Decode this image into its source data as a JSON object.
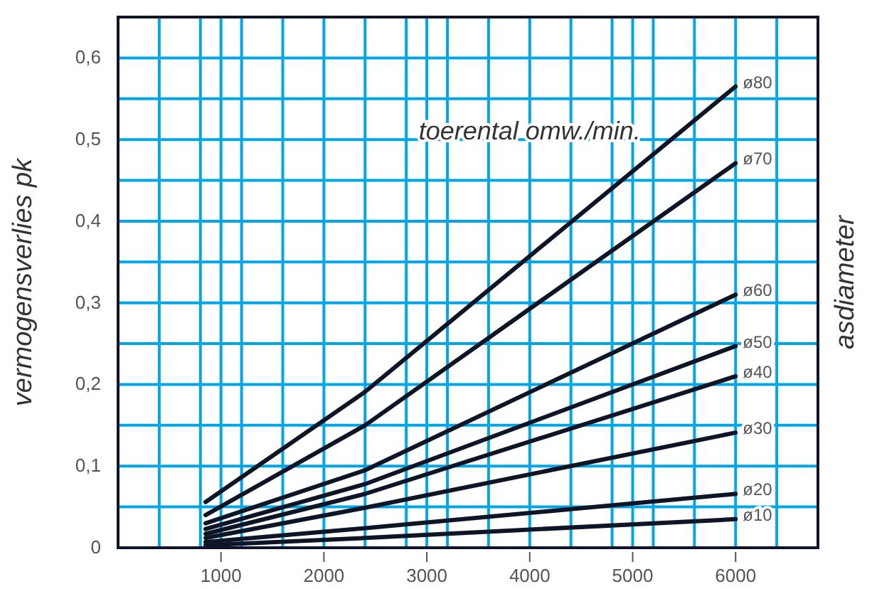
{
  "chart_data": {
    "type": "line",
    "xlabel": "toerental omw./min.",
    "ylabel": "vermogensverlies pk",
    "legend_title": "asdiameter",
    "xlim": [
      0,
      6800
    ],
    "xticks": [
      {
        "value": 400,
        "label": null
      },
      {
        "value": 800,
        "label": null
      },
      1000,
      {
        "value": 1200,
        "label": null
      },
      {
        "value": 1600,
        "label": null
      },
      2000,
      {
        "value": 2400,
        "label": null
      },
      {
        "value": 2800,
        "label": null
      },
      3000,
      {
        "value": 3200,
        "label": null
      },
      {
        "value": 3600,
        "label": null
      },
      4000,
      {
        "value": 4400,
        "label": null
      },
      {
        "value": 4800,
        "label": null
      },
      5000,
      {
        "value": 5200,
        "label": null
      },
      {
        "value": 5600,
        "label": null
      },
      6000,
      {
        "value": 6400,
        "label": null
      }
    ],
    "ylim": [
      0,
      0.65
    ],
    "yticks": [
      {
        "value": 0,
        "label": "0"
      },
      {
        "value": 0.05,
        "label": null
      },
      {
        "value": 0.1,
        "label": "0,1"
      },
      {
        "value": 0.15,
        "label": null
      },
      {
        "value": 0.2,
        "label": "0,2"
      },
      {
        "value": 0.25,
        "label": null
      },
      {
        "value": 0.3,
        "label": "0,3"
      },
      {
        "value": 0.35,
        "label": null
      },
      {
        "value": 0.4,
        "label": "0,4"
      },
      {
        "value": 0.45,
        "label": null
      },
      {
        "value": 0.5,
        "label": "0,5"
      },
      {
        "value": 0.55,
        "label": null
      },
      {
        "value": 0.6,
        "label": "0,6"
      }
    ],
    "grid": true,
    "marker": "none",
    "line_style": "solid",
    "x": [
      850,
      2400,
      6000
    ],
    "series": [
      {
        "name": "ø80",
        "color": "#0d1526",
        "values": [
          0.056,
          0.191,
          0.565
        ]
      },
      {
        "name": "ø70",
        "color": "#0d1526",
        "values": [
          0.04,
          0.15,
          0.471
        ]
      },
      {
        "name": "ø60",
        "color": "#0d1526",
        "values": [
          0.03,
          0.095,
          0.31
        ]
      },
      {
        "name": "ø50",
        "color": "#0d1526",
        "values": [
          0.023,
          0.078,
          0.247
        ]
      },
      {
        "name": "ø40",
        "color": "#0d1526",
        "values": [
          0.017,
          0.066,
          0.21
        ]
      },
      {
        "name": "ø30",
        "color": "#0d1526",
        "values": [
          0.012,
          0.049,
          0.141
        ]
      },
      {
        "name": "ø20",
        "color": "#0d1526",
        "values": [
          0.007,
          0.024,
          0.066
        ]
      },
      {
        "name": "ø10",
        "color": "#0d1526",
        "values": [
          0.003,
          0.012,
          0.035
        ]
      }
    ]
  }
}
